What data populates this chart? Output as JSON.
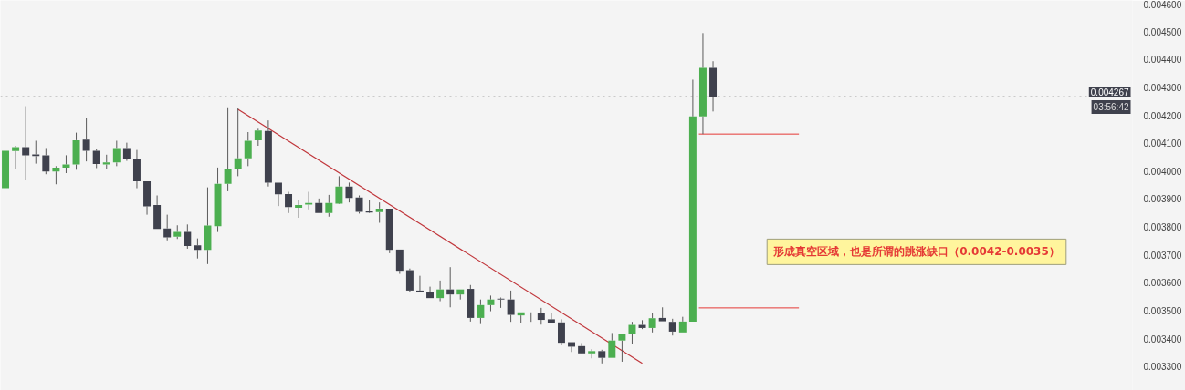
{
  "chart_data": {
    "type": "candlestick",
    "categories": [
      null,
      null,
      null,
      null,
      null,
      null,
      null,
      null,
      null,
      null,
      null,
      null,
      null,
      null,
      null,
      null,
      null,
      null,
      null,
      null,
      null,
      null,
      null,
      null,
      null,
      null,
      null,
      null,
      null,
      null,
      null,
      null,
      null,
      null,
      null,
      null,
      null,
      null,
      null,
      null,
      null,
      null,
      null,
      null,
      null,
      null,
      null,
      null,
      null,
      null,
      null,
      null,
      null,
      null,
      null,
      null,
      null,
      null,
      null,
      null,
      null,
      null,
      null,
      null,
      null,
      null,
      null,
      null,
      null,
      null,
      null,
      null,
      null,
      null,
      null,
      null,
      null,
      null,
      null,
      null,
      null,
      null,
      null,
      null,
      null,
      null,
      null,
      null,
      null,
      null,
      null,
      null,
      null,
      null,
      null,
      null,
      null,
      null,
      null,
      null,
      null,
      null,
      null,
      null,
      null,
      null,
      null,
      null,
      null,
      null,
      null,
      null
    ],
    "ohlc": [
      [
        0.003939,
        0.004073,
        0.003939,
        0.004073
      ],
      [
        0.004072,
        0.004091,
        0.004008,
        0.004086
      ],
      [
        0.004086,
        0.004233,
        0.003969,
        0.004057
      ],
      [
        0.00406,
        0.004109,
        0.004027,
        0.004054
      ],
      [
        0.004057,
        0.004083,
        0.003989,
        0.003999
      ],
      [
        0.003999,
        0.004018,
        0.003953,
        0.004013
      ],
      [
        0.004013,
        0.004057,
        0.003993,
        0.004024
      ],
      [
        0.004024,
        0.004138,
        0.004005,
        0.004111
      ],
      [
        0.004113,
        0.004189,
        0.004035,
        0.004073
      ],
      [
        0.004073,
        0.00408,
        0.004011,
        0.004026
      ],
      [
        0.004024,
        0.004059,
        0.004008,
        0.004031
      ],
      [
        0.004031,
        0.004109,
        0.004018,
        0.004083
      ],
      [
        0.004083,
        0.004102,
        0.004037,
        0.004043
      ],
      [
        0.004043,
        0.004076,
        0.003939,
        0.003964
      ],
      [
        0.003964,
        0.003964,
        0.003844,
        0.003874
      ],
      [
        0.003879,
        0.003913,
        0.003793,
        0.003793
      ],
      [
        0.003795,
        0.003844,
        0.003752,
        0.003763
      ],
      [
        0.003765,
        0.003806,
        0.003757,
        0.003782
      ],
      [
        0.003782,
        0.003809,
        0.003722,
        0.003732
      ],
      [
        0.003734,
        0.003759,
        0.003687,
        0.003718
      ],
      [
        0.003718,
        0.003942,
        0.003667,
        0.003805
      ],
      [
        0.003803,
        0.004013,
        0.003782,
        0.003955
      ],
      [
        0.003955,
        0.004229,
        0.003928,
        0.004007
      ],
      [
        0.004007,
        0.004225,
        0.003982,
        0.004046
      ],
      [
        0.004046,
        0.00414,
        0.004018,
        0.004109
      ],
      [
        0.004111,
        0.004152,
        0.004091,
        0.004146
      ],
      [
        0.004144,
        0.004182,
        0.003945,
        0.003959
      ],
      [
        0.003959,
        0.003959,
        0.003875,
        0.003917
      ],
      [
        0.003918,
        0.003926,
        0.00385,
        0.003871
      ],
      [
        0.003869,
        0.003897,
        0.003833,
        0.003879
      ],
      [
        0.00388,
        0.003926,
        0.003863,
        0.003886
      ],
      [
        0.003886,
        0.003902,
        0.00385,
        0.00385
      ],
      [
        0.00385,
        0.003915,
        0.003837,
        0.003886
      ],
      [
        0.003884,
        0.003982,
        0.003882,
        0.003945
      ],
      [
        0.003945,
        0.003959,
        0.003888,
        0.003904
      ],
      [
        0.003906,
        0.003913,
        0.003848,
        0.003854
      ],
      [
        0.003856,
        0.003897,
        0.00385,
        0.003852
      ],
      [
        0.003853,
        0.003888,
        0.003815,
        0.003866
      ],
      [
        0.003866,
        0.003866,
        0.003706,
        0.003718
      ],
      [
        0.003719,
        0.003719,
        0.003632,
        0.003643
      ],
      [
        0.003645,
        0.003651,
        0.003567,
        0.003572
      ],
      [
        0.003572,
        0.003625,
        0.003567,
        0.003567
      ],
      [
        0.003567,
        0.003586,
        0.003545,
        0.003545
      ],
      [
        0.003545,
        0.003608,
        0.003534,
        0.003576
      ],
      [
        0.003576,
        0.003656,
        0.003512,
        0.003558
      ],
      [
        0.003558,
        0.003576,
        0.00354,
        0.003576
      ],
      [
        0.003578,
        0.003592,
        0.003461,
        0.003474
      ],
      [
        0.003474,
        0.00354,
        0.003452,
        0.00352
      ],
      [
        0.00352,
        0.003554,
        0.003498,
        0.00354
      ],
      [
        0.003543,
        0.003547,
        0.00351,
        0.00354
      ],
      [
        0.00354,
        0.003572,
        0.00346,
        0.003485
      ],
      [
        0.003483,
        0.003494,
        0.003455,
        0.003494
      ],
      [
        0.003493,
        0.003494,
        0.00346,
        0.003491
      ],
      [
        0.003491,
        0.00351,
        0.00345,
        0.003467
      ],
      [
        0.003469,
        0.003493,
        0.003456,
        0.003456
      ],
      [
        0.003458,
        0.003469,
        0.003376,
        0.003385
      ],
      [
        0.003387,
        0.003387,
        0.003352,
        0.003371
      ],
      [
        0.003373,
        0.003384,
        0.003344,
        0.003347
      ],
      [
        0.003347,
        0.003362,
        0.003329,
        0.003355
      ],
      [
        0.003355,
        0.00336,
        0.003311,
        0.003331
      ],
      [
        0.003331,
        0.00342,
        0.003331,
        0.003393
      ],
      [
        0.003393,
        0.003417,
        0.003317,
        0.003417
      ],
      [
        0.003417,
        0.00346,
        0.00338,
        0.003449
      ],
      [
        0.003449,
        0.003466,
        0.003434,
        0.003438
      ],
      [
        0.003438,
        0.003493,
        0.003422,
        0.003473
      ],
      [
        0.003474,
        0.003512,
        0.003462,
        0.003462
      ],
      [
        0.00346,
        0.003471,
        0.003411,
        0.003425
      ],
      [
        0.003422,
        0.003478,
        0.003422,
        0.003461
      ],
      [
        0.003461,
        0.004328,
        0.003461,
        0.004196
      ],
      [
        0.004196,
        0.004495,
        0.004133,
        0.00437
      ],
      [
        0.00437,
        0.004394,
        0.004214,
        0.004267
      ],
      null,
      null,
      null,
      null,
      null,
      null,
      null,
      null,
      null,
      null,
      null,
      null,
      null,
      null,
      null,
      null,
      null,
      null,
      null,
      null,
      null,
      null,
      null,
      null,
      null,
      null,
      null,
      null,
      null,
      null,
      null,
      null,
      null,
      null,
      null,
      null,
      null,
      null,
      null,
      null,
      null
    ],
    "colors": [
      "#4caf50",
      "#4caf50",
      "#3f414d",
      "#3f414d",
      "#3f414d",
      "#4caf50",
      "#4caf50",
      "#4caf50",
      "#3f414d",
      "#3f414d",
      "#4caf50",
      "#4caf50",
      "#3f414d",
      "#3f414d",
      "#3f414d",
      "#3f414d",
      "#3f414d",
      "#4caf50",
      "#3f414d",
      "#3f414d",
      "#4caf50",
      "#4caf50",
      "#4caf50",
      "#4caf50",
      "#4caf50",
      "#4caf50",
      "#3f414d",
      "#3f414d",
      "#3f414d",
      "#4caf50",
      "#4caf50",
      "#3f414d",
      "#4caf50",
      "#4caf50",
      "#3f414d",
      "#3f414d",
      "#3f414d",
      "#4caf50",
      "#3f414d",
      "#3f414d",
      "#3f414d",
      "#3f414d",
      "#3f414d",
      "#4caf50",
      "#3f414d",
      "#4caf50",
      "#3f414d",
      "#4caf50",
      "#4caf50",
      "#3f414d",
      "#3f414d",
      "#4caf50",
      "#3f414d",
      "#3f414d",
      "#3f414d",
      "#3f414d",
      "#3f414d",
      "#3f414d",
      "#4caf50",
      "#3f414d",
      "#4caf50",
      "#4caf50",
      "#4caf50",
      "#3f414d",
      "#4caf50",
      "#3f414d",
      "#3f414d",
      "#4caf50",
      "#4caf50",
      "#4caf50",
      "#3f414d",
      null,
      null,
      null,
      null,
      null,
      null,
      null,
      null,
      null,
      null,
      null,
      null,
      null,
      null,
      null,
      null,
      null,
      null,
      null,
      null,
      null,
      null,
      null,
      null,
      null,
      null,
      null,
      null,
      null,
      null,
      null,
      null,
      null,
      null,
      null,
      null,
      null,
      null,
      null,
      null,
      null
    ],
    "series": [
      {
        "type": "line",
        "color": "#c0353a",
        "values": [
          null,
          null,
          null,
          null,
          null,
          null,
          null,
          null,
          null,
          null,
          null,
          null,
          null,
          null,
          null,
          null,
          null,
          null,
          null,
          null,
          null,
          null,
          null,
          0.004222,
          null,
          null,
          null,
          null,
          null,
          null,
          null,
          null,
          null,
          null,
          null,
          null,
          null,
          null,
          null,
          null,
          null,
          null,
          null,
          null,
          null,
          null,
          null,
          null,
          null,
          null,
          null,
          null,
          null,
          null,
          null,
          null,
          null,
          null,
          null,
          null,
          null,
          null,
          null,
          0.003311,
          null,
          null,
          null,
          null,
          null,
          null,
          null,
          null,
          null,
          null,
          null,
          null,
          null,
          null,
          null,
          null,
          null,
          null,
          null,
          null,
          null,
          null,
          null,
          null,
          null,
          null,
          null,
          null,
          null,
          null,
          null,
          null,
          null,
          null,
          null,
          null,
          null,
          null,
          null,
          null,
          null,
          null,
          null,
          null,
          null,
          null,
          null,
          null
        ]
      }
    ],
    "ylim": [
      0.003214,
      0.004612
    ],
    "yticks": [
      {
        "value": 0.0033,
        "label": "0.003300"
      },
      {
        "value": 0.0034,
        "label": "0.003400"
      },
      {
        "value": 0.0035,
        "label": "0.003500"
      },
      {
        "value": 0.0036,
        "label": "0.003600"
      },
      {
        "value": 0.0037,
        "label": "0.003700"
      },
      {
        "value": 0.0038,
        "label": "0.003800"
      },
      {
        "value": 0.0039,
        "label": "0.003900"
      },
      {
        "value": 0.004,
        "label": "0.004000"
      },
      {
        "value": 0.0041,
        "label": "0.004100"
      },
      {
        "value": 0.0042,
        "label": "0.004200"
      },
      {
        "value": 0.0043,
        "label": "0.004300"
      },
      {
        "value": 0.0044,
        "label": "0.004400"
      },
      {
        "value": 0.0045,
        "label": "0.004500"
      },
      {
        "value": 0.0046,
        "label": "0.004600"
      }
    ],
    "tick_labels": "y",
    "grid": false,
    "ref_lines": [
      {
        "axis": "y",
        "value": 0.004267,
        "label": "0.004267",
        "line_style": "dotted",
        "color": "#8a8a8a"
      },
      {
        "axis": "y",
        "value": 0.004133,
        "line_style": "solid",
        "color": "#e53935"
      },
      {
        "axis": "y",
        "value": 0.00351,
        "line_style": "solid",
        "color": "#e53935"
      }
    ],
    "annotations": [
      "03:56:42",
      "形成真空区域，也是所谓的跳涨缺口（0.0042-0.0035）"
    ]
  }
}
